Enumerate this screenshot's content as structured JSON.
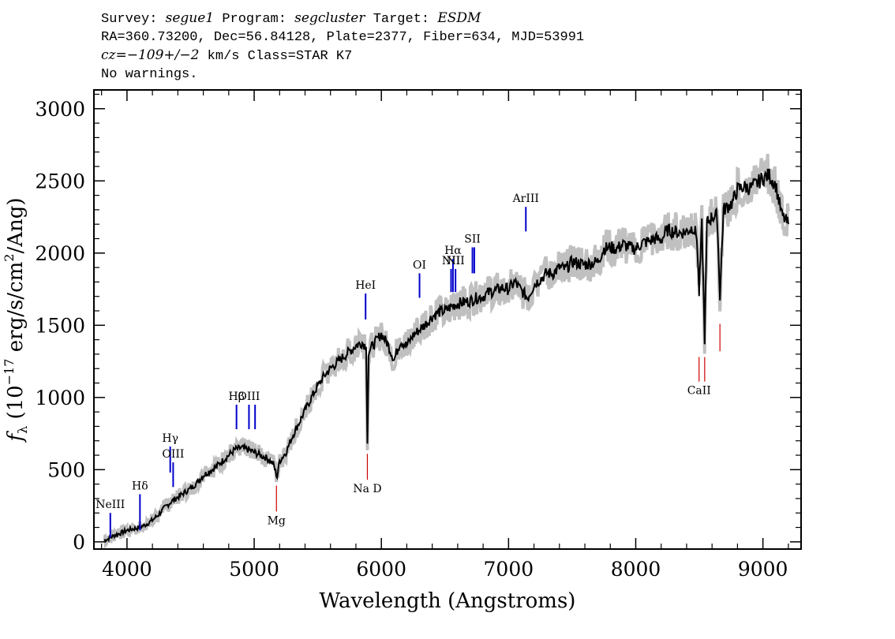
{
  "header": {
    "survey_label": "Survey:",
    "survey": "segue1",
    "program_label": "Program:",
    "program": "segcluster",
    "target_label": "Target:",
    "target": "ESDM",
    "line2": "RA=360.73200, Dec=56.84128, Plate=2377, Fiber=634, MJD=53991",
    "cz_label": "cz=",
    "cz_value": "−109+/−2",
    "cz_rest": " km/s Class=STAR K7",
    "line4": "No warnings."
  },
  "colors": {
    "flux": "#000000",
    "error": "#c0c0c0",
    "emission": "#0000cc",
    "absorption": "#cc0000"
  },
  "chart_data": {
    "type": "line",
    "title": "",
    "xlabel": "Wavelength (Angstroms)",
    "ylabel": "f_λ (10⁻¹⁷ erg/s/cm²/Ang)",
    "ylabel_parts": [
      "(10",
      "−17",
      " erg/s/cm",
      "2",
      "/Ang)"
    ],
    "xlim": [
      3740,
      9300
    ],
    "ylim": [
      -50,
      3130
    ],
    "xticks": [
      4000,
      5000,
      6000,
      7000,
      8000,
      9000
    ],
    "xtick_labels": [
      "4000",
      "5000",
      "6000",
      "7000",
      "8000",
      "9000"
    ],
    "yticks": [
      0,
      500,
      1000,
      1500,
      2000,
      2500,
      3000
    ],
    "ytick_labels": [
      "0",
      "500",
      "1000",
      "1500",
      "2000",
      "2500",
      "3000"
    ],
    "series": [
      {
        "name": "flux",
        "x": [
          3820,
          3850,
          3880,
          3900,
          3950,
          4000,
          4050,
          4100,
          4150,
          4200,
          4250,
          4300,
          4350,
          4400,
          4450,
          4500,
          4550,
          4600,
          4650,
          4700,
          4750,
          4800,
          4850,
          4900,
          4950,
          5000,
          5050,
          5100,
          5150,
          5180,
          5200,
          5250,
          5300,
          5350,
          5400,
          5450,
          5500,
          5550,
          5600,
          5650,
          5700,
          5750,
          5800,
          5850,
          5880,
          5890,
          5900,
          5950,
          6000,
          6050,
          6100,
          6150,
          6200,
          6250,
          6300,
          6350,
          6400,
          6450,
          6500,
          6550,
          6600,
          6650,
          6700,
          6750,
          6800,
          6850,
          6900,
          6950,
          7000,
          7050,
          7100,
          7150,
          7200,
          7250,
          7300,
          7350,
          7400,
          7450,
          7500,
          7550,
          7600,
          7650,
          7700,
          7750,
          7800,
          7850,
          7900,
          7950,
          8000,
          8050,
          8100,
          8150,
          8200,
          8250,
          8300,
          8350,
          8400,
          8450,
          8480,
          8498,
          8520,
          8542,
          8560,
          8600,
          8640,
          8662,
          8690,
          8720,
          8760,
          8800,
          8850,
          8900,
          8950,
          9000,
          9050,
          9100,
          9150,
          9200
        ],
        "values": [
          10,
          20,
          35,
          45,
          60,
          80,
          90,
          100,
          120,
          150,
          190,
          240,
          280,
          310,
          340,
          370,
          410,
          460,
          490,
          520,
          560,
          600,
          640,
          650,
          640,
          620,
          600,
          580,
          540,
          450,
          560,
          620,
          730,
          820,
          910,
          1000,
          1080,
          1150,
          1200,
          1240,
          1280,
          1320,
          1360,
          1380,
          1350,
          680,
          1320,
          1380,
          1440,
          1370,
          1260,
          1390,
          1360,
          1430,
          1470,
          1510,
          1560,
          1590,
          1600,
          1630,
          1650,
          1660,
          1670,
          1690,
          1700,
          1730,
          1740,
          1760,
          1750,
          1800,
          1740,
          1690,
          1780,
          1820,
          1860,
          1860,
          1900,
          1890,
          1940,
          1930,
          1920,
          1930,
          1940,
          2030,
          2040,
          2030,
          2060,
          2040,
          2030,
          2070,
          2080,
          2100,
          2090,
          2160,
          2150,
          2140,
          2150,
          2180,
          2120,
          1720,
          2200,
          1400,
          2210,
          2250,
          2260,
          1700,
          2300,
          2320,
          2350,
          2440,
          2460,
          2450,
          2480,
          2520,
          2540,
          2470,
          2260,
          2200
        ]
      }
    ],
    "emission_lines": [
      {
        "label": "NeIII",
        "wavelength": 3869,
        "y_bottom": 30,
        "y_top": 200
      },
      {
        "label": "Hδ",
        "wavelength": 4102,
        "y_bottom": 80,
        "y_top": 330
      },
      {
        "label": "Hγ",
        "wavelength": 4340,
        "y_bottom": 480,
        "y_top": 660
      },
      {
        "label": "OIII",
        "wavelength": 4363,
        "y_bottom": 380,
        "y_top": 550
      },
      {
        "label": "Hβ",
        "wavelength": 4861,
        "y_bottom": 780,
        "y_top": 950
      },
      {
        "label": "OIII",
        "wavelength": 4959,
        "y_bottom": 780,
        "y_top": 950
      },
      {
        "label": "",
        "wavelength": 5007,
        "y_bottom": 780,
        "y_top": 950
      },
      {
        "label": "HeI",
        "wavelength": 5876,
        "y_bottom": 1540,
        "y_top": 1720
      },
      {
        "label": "OI",
        "wavelength": 6300,
        "y_bottom": 1690,
        "y_top": 1860
      },
      {
        "label": "NII",
        "wavelength": 6548,
        "y_bottom": 1730,
        "y_top": 1890
      },
      {
        "label": "Hα",
        "wavelength": 6563,
        "y_bottom": 1730,
        "y_top": 1960
      },
      {
        "label": "NII",
        "wavelength": 6583,
        "y_bottom": 1730,
        "y_top": 1890
      },
      {
        "label": "SII",
        "wavelength": 6716,
        "y_bottom": 1860,
        "y_top": 2040
      },
      {
        "label": "",
        "wavelength": 6731,
        "y_bottom": 1860,
        "y_top": 2040
      },
      {
        "label": "ArIII",
        "wavelength": 7136,
        "y_bottom": 2150,
        "y_top": 2320
      }
    ],
    "absorption_lines": [
      {
        "label": "Mg",
        "wavelength": 5175,
        "y_bottom": 210,
        "y_top": 390
      },
      {
        "label": "Na D",
        "wavelength": 5890,
        "y_bottom": 430,
        "y_top": 610
      },
      {
        "label": "CaII",
        "wavelength": 8498,
        "y_bottom": 1110,
        "y_top": 1280
      },
      {
        "label": "",
        "wavelength": 8542,
        "y_bottom": 1110,
        "y_top": 1280
      },
      {
        "label": "",
        "wavelength": 8662,
        "y_bottom": 1320,
        "y_top": 1510
      }
    ]
  }
}
